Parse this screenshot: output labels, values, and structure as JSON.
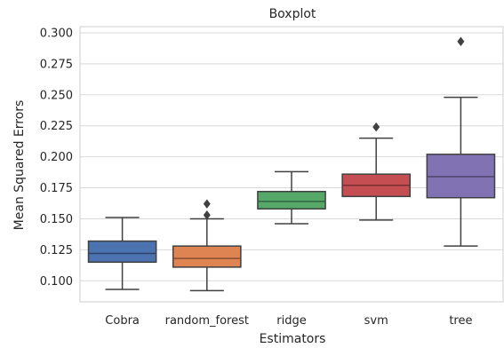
{
  "chart_data": {
    "type": "boxplot",
    "title": "Boxplot",
    "xlabel": "Estimators",
    "ylabel": "Mean Squared Errors",
    "ylim": [
      0.083,
      0.305
    ],
    "yticks": [
      "0.100",
      "0.125",
      "0.150",
      "0.175",
      "0.200",
      "0.225",
      "0.250",
      "0.275",
      "0.300"
    ],
    "grid": true,
    "boxes": [
      {
        "name": "Cobra",
        "color": "#4c72b0",
        "whisker_low": 0.093,
        "q1": 0.115,
        "median": 0.122,
        "q3": 0.132,
        "whisker_high": 0.151,
        "outliers": []
      },
      {
        "name": "random_forest",
        "color": "#dd8452",
        "whisker_low": 0.092,
        "q1": 0.111,
        "median": 0.118,
        "q3": 0.128,
        "whisker_high": 0.15,
        "outliers": [
          0.153,
          0.162
        ]
      },
      {
        "name": "ridge",
        "color": "#55a868",
        "whisker_low": 0.146,
        "q1": 0.158,
        "median": 0.164,
        "q3": 0.172,
        "whisker_high": 0.188,
        "outliers": []
      },
      {
        "name": "svm",
        "color": "#c44e52",
        "whisker_low": 0.149,
        "q1": 0.168,
        "median": 0.177,
        "q3": 0.186,
        "whisker_high": 0.215,
        "outliers": [
          0.224
        ]
      },
      {
        "name": "tree",
        "color": "#8172b3",
        "whisker_low": 0.128,
        "q1": 0.167,
        "median": 0.184,
        "q3": 0.202,
        "whisker_high": 0.248,
        "outliers": [
          0.293
        ]
      }
    ]
  }
}
